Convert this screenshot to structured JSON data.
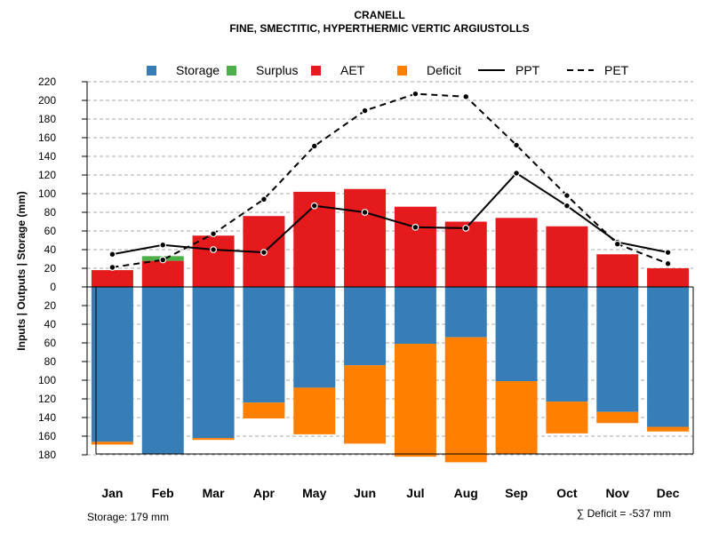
{
  "chart_data": {
    "type": "bar",
    "title": "CRANELL",
    "subtitle": "FINE, SMECTITIC, HYPERTHERMIC VERTIC ARGIUSTOLLS",
    "ylabel": "Inputs | Outputs | Storage    (mm)",
    "ylim": [
      -180,
      220
    ],
    "upper_ticks": [
      "0",
      "20",
      "40",
      "60",
      "80",
      "100",
      "120",
      "140",
      "160",
      "180",
      "200",
      "220"
    ],
    "lower_ticks": [
      "20",
      "40",
      "60",
      "80",
      "100",
      "120",
      "140",
      "160",
      "180"
    ],
    "categories": [
      "Jan",
      "Feb",
      "Mar",
      "Apr",
      "May",
      "Jun",
      "Jul",
      "Aug",
      "Sep",
      "Oct",
      "Nov",
      "Dec"
    ],
    "legend": [
      {
        "label": "Storage",
        "kind": "box",
        "color": "#377EB8"
      },
      {
        "label": "Surplus",
        "kind": "box",
        "color": "#4DAF4A"
      },
      {
        "label": "AET",
        "kind": "box",
        "color": "#E41A1C"
      },
      {
        "label": "Deficit",
        "kind": "box",
        "color": "#FF7F00"
      },
      {
        "label": "PPT",
        "kind": "solid",
        "color": "#000000"
      },
      {
        "label": "PET",
        "kind": "dashed",
        "color": "#000000"
      }
    ],
    "series": [
      {
        "name": "AET",
        "color": "#E41A1C",
        "values": [
          18,
          28,
          55,
          76,
          102,
          105,
          86,
          70,
          74,
          65,
          35,
          20
        ]
      },
      {
        "name": "Surplus",
        "color": "#4DAF4A",
        "values": [
          0,
          5,
          0,
          0,
          0,
          0,
          0,
          0,
          0,
          0,
          0,
          0
        ]
      },
      {
        "name": "Storage",
        "color": "#377EB8",
        "values": [
          166,
          179,
          162,
          124,
          108,
          84,
          61,
          54,
          101,
          123,
          134,
          150
        ]
      },
      {
        "name": "Deficit",
        "color": "#FF7F00",
        "values": [
          3,
          0,
          2,
          17,
          50,
          84,
          121,
          134,
          78,
          34,
          12,
          5
        ]
      },
      {
        "name": "PPT",
        "color": "#000000",
        "values": [
          35,
          45,
          40,
          37,
          87,
          80,
          64,
          63,
          122,
          87,
          48,
          37
        ]
      },
      {
        "name": "PET",
        "color": "#000000",
        "values": [
          21,
          29,
          57,
          94,
          151,
          189,
          207,
          204,
          152,
          98,
          46,
          25
        ]
      }
    ],
    "storage_capacity": 179,
    "footer_left": "Storage: 179 mm",
    "footer_right": "∑ Deficit = -537 mm"
  }
}
